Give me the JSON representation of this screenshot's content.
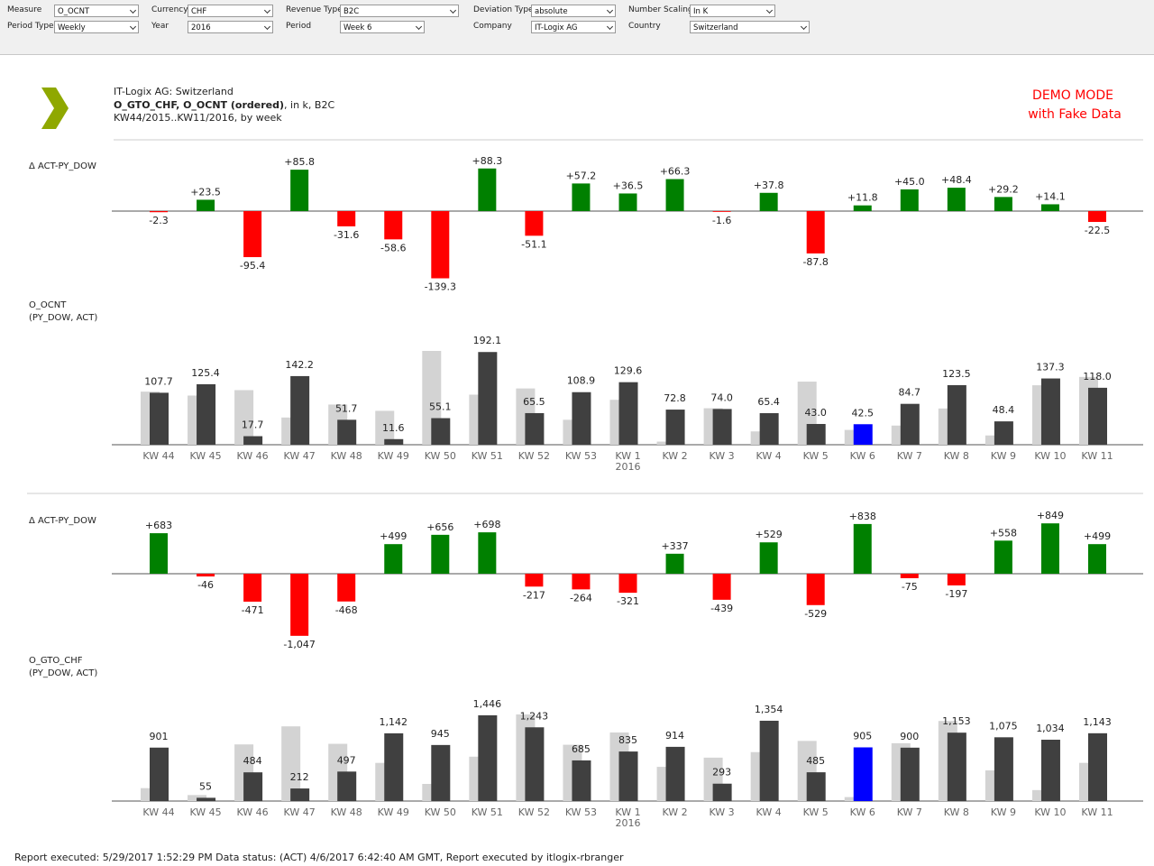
{
  "filters": [
    {
      "label": "Measure",
      "value": "O_OCNT"
    },
    {
      "label": "Period Type",
      "value": "Weekly"
    },
    {
      "label": "Currency",
      "value": "CHF"
    },
    {
      "label": "Year",
      "value": "2016"
    },
    {
      "label": "Revenue Type",
      "value": "B2C"
    },
    {
      "label": "Period",
      "value": "Week 6"
    },
    {
      "label": "Deviation Type",
      "value": "absolute"
    },
    {
      "label": "Company",
      "value": "IT-Logix AG"
    },
    {
      "label": "Number Scaling",
      "value": "In K"
    },
    {
      "label": "Country",
      "value": "Switzerland"
    }
  ],
  "header": {
    "line1": "IT-Logix AG: Switzerland",
    "line2_bold": "O_GTO_CHF, O_OCNT (ordered)",
    "line2_rest": ", in k, B2C",
    "line3": "KW44/2015..KW11/2016, by week"
  },
  "demo": {
    "line1": "DEMO MODE",
    "line2": "with Fake Data"
  },
  "footer": "Report executed: 5/29/2017 1:52:29 PM  Data status: (ACT) 4/6/2017 6:42:40 AM GMT, Report executed by itlogix-rbranger",
  "chart_data": [
    {
      "type": "bar",
      "title": "Δ ACT-PY_DOW",
      "positive_color": "#008000",
      "negative_color": "#ff0000",
      "values": [
        -2.3,
        23.5,
        -95.4,
        85.8,
        -31.6,
        -58.6,
        -139.3,
        88.3,
        -51.1,
        57.2,
        36.5,
        66.3,
        -1.6,
        37.8,
        -87.8,
        11.8,
        45.0,
        48.4,
        29.2,
        14.1,
        -22.5
      ],
      "value_labels": [
        "-2.3",
        "+23.5",
        "-95.4",
        "+85.8",
        "-31.6",
        "-58.6",
        "-139.3",
        "+88.3",
        "-51.1",
        "+57.2",
        "+36.5",
        "+66.3",
        "-1.6",
        "+37.8",
        "-87.8",
        "+11.8",
        "+45.0",
        "+48.4",
        "+29.2",
        "+14.1",
        "-22.5"
      ]
    },
    {
      "type": "bar",
      "title": "O_OCNT",
      "subtitle": "(PY_DOW, ACT)",
      "categories": [
        "KW 44",
        "KW 45",
        "KW 46",
        "KW 47",
        "KW 48",
        "KW 49",
        "KW 50",
        "KW 51",
        "KW 52",
        "KW 53",
        "KW 1",
        "KW 2",
        "KW 3",
        "KW 4",
        "KW 5",
        "KW 6",
        "KW 7",
        "KW 8",
        "KW 9",
        "KW 10",
        "KW 11"
      ],
      "category_sublabels": [
        null,
        null,
        null,
        null,
        null,
        null,
        null,
        null,
        null,
        null,
        "2016",
        null,
        null,
        null,
        null,
        null,
        null,
        null,
        null,
        null,
        null
      ],
      "series": [
        {
          "color": "#d3d3d3",
          "values": [
            110.0,
            101.9,
            113.1,
            56.4,
            83.3,
            70.2,
            194.4,
            103.8,
            116.6,
            51.7,
            93.1,
            6.5,
            75.6,
            27.6,
            130.8,
            30.7,
            39.7,
            75.1,
            19.2,
            123.2,
            140.5
          ]
        },
        {
          "color": "#404040",
          "colors": [
            "#404040",
            "#404040",
            "#404040",
            "#404040",
            "#404040",
            "#404040",
            "#404040",
            "#404040",
            "#404040",
            "#404040",
            "#404040",
            "#404040",
            "#404040",
            "#404040",
            "#404040",
            "#0000ff",
            "#404040",
            "#404040",
            "#404040",
            "#404040",
            "#404040"
          ],
          "values": [
            107.7,
            125.4,
            17.7,
            142.2,
            51.7,
            11.6,
            55.1,
            192.1,
            65.5,
            108.9,
            129.6,
            72.8,
            74.0,
            65.4,
            43.0,
            42.5,
            84.7,
            123.5,
            48.4,
            137.3,
            118.0
          ],
          "value_labels": [
            "107.7",
            "125.4",
            "17.7",
            "142.2",
            "51.7",
            "11.6",
            "55.1",
            "192.1",
            "65.5",
            "108.9",
            "129.6",
            "72.8",
            "74.0",
            "65.4",
            "43.0",
            "42.5",
            "84.7",
            "123.5",
            "48.4",
            "137.3",
            "118.0"
          ]
        }
      ]
    },
    {
      "type": "bar",
      "title": "Δ ACT-PY_DOW",
      "positive_color": "#008000",
      "negative_color": "#ff0000",
      "values": [
        683,
        -46,
        -471,
        -1047,
        -468,
        499,
        656,
        698,
        -217,
        -264,
        -321,
        337,
        -439,
        529,
        -529,
        838,
        -75,
        -197,
        558,
        849,
        499
      ],
      "value_labels": [
        "+683",
        "-46",
        "-471",
        "-1,047",
        "-468",
        "+499",
        "+656",
        "+698",
        "-217",
        "-264",
        "-321",
        "+337",
        "-439",
        "+529",
        "-529",
        "+838",
        "-75",
        "-197",
        "+558",
        "+849",
        "+499"
      ]
    },
    {
      "type": "bar",
      "title": "O_GTO_CHF",
      "subtitle": "(PY_DOW, ACT)",
      "categories": [
        "KW 44",
        "KW 45",
        "KW 46",
        "KW 47",
        "KW 48",
        "KW 49",
        "KW 50",
        "KW 51",
        "KW 52",
        "KW 53",
        "KW 1",
        "KW 2",
        "KW 3",
        "KW 4",
        "KW 5",
        "KW 6",
        "KW 7",
        "KW 8",
        "KW 9",
        "KW 10",
        "KW 11"
      ],
      "category_sublabels": [
        null,
        null,
        null,
        null,
        null,
        null,
        null,
        null,
        null,
        null,
        "2016",
        null,
        null,
        null,
        null,
        null,
        null,
        null,
        null,
        null,
        null
      ],
      "series": [
        {
          "color": "#d3d3d3",
          "values": [
            218,
            101,
            955,
            1259,
            965,
            643,
            289,
            748,
            1460,
            949,
            1156,
            577,
            732,
            825,
            1014,
            67,
            975,
            1350,
            517,
            185,
            644
          ]
        },
        {
          "color": "#404040",
          "colors": [
            "#404040",
            "#404040",
            "#404040",
            "#404040",
            "#404040",
            "#404040",
            "#404040",
            "#404040",
            "#404040",
            "#404040",
            "#404040",
            "#404040",
            "#404040",
            "#404040",
            "#404040",
            "#0000ff",
            "#404040",
            "#404040",
            "#404040",
            "#404040",
            "#404040"
          ],
          "values": [
            901,
            55,
            484,
            212,
            497,
            1142,
            945,
            1446,
            1243,
            685,
            835,
            914,
            293,
            1354,
            485,
            905,
            900,
            1153,
            1075,
            1034,
            1143
          ],
          "value_labels": [
            "901",
            "55",
            "484",
            "212",
            "497",
            "1,142",
            "945",
            "1,446",
            "1,243",
            "685",
            "835",
            "914",
            "293",
            "1,354",
            "485",
            "905",
            "900",
            "1,153",
            "1,075",
            "1,034",
            "1,143"
          ]
        }
      ]
    }
  ]
}
